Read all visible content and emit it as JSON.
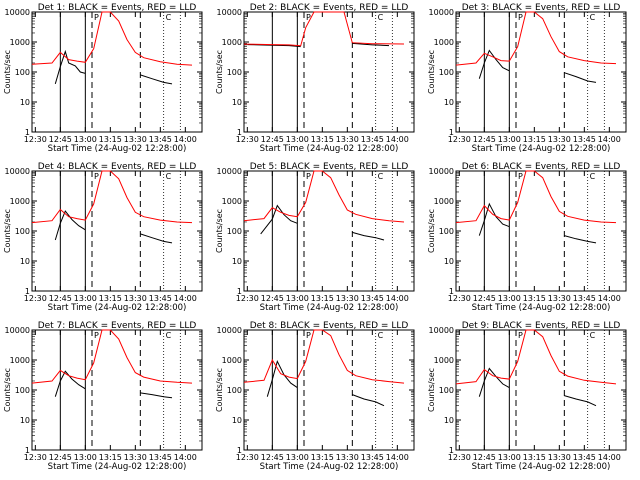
{
  "figure": {
    "xlabel": "Start Time (24-Aug-02 12:28:00)",
    "ylabel": "Counts/sec",
    "x_ticks": [
      "12:30",
      "12:45",
      "13:00",
      "13:15",
      "13:30",
      "13:45",
      "14:00"
    ],
    "y_ticks": [
      "1",
      "10",
      "100",
      "1000",
      "10000"
    ],
    "marker_glyphs": [
      "P",
      "C"
    ],
    "colors": {
      "events": "#000000",
      "lld": "#ff0000"
    }
  },
  "chart_data": [
    {
      "type": "line",
      "title": "Det 1: BLACK = Events, RED = LLD",
      "x_range": [
        "12:28",
        "14:10"
      ],
      "ylim": [
        1,
        10000
      ],
      "yscale": "log",
      "solid_markers": [
        "12:45",
        "13:00"
      ],
      "dashed_markers": [
        "13:04",
        "13:33"
      ],
      "dotted_markers": [
        "13:47",
        "13:57"
      ],
      "series": [
        {
          "name": "Events",
          "x": [
            "12:42",
            "12:45",
            "12:48",
            "12:50",
            "12:54",
            "12:57",
            "13:00",
            "13:33",
            "13:40",
            "13:47",
            "13:52"
          ],
          "y": [
            40,
            150,
            480,
            200,
            160,
            100,
            90,
            80,
            60,
            45,
            40
          ]
        },
        {
          "name": "LLD",
          "x": [
            "12:28",
            "12:40",
            "12:45",
            "12:50",
            "12:55",
            "13:00",
            "13:05",
            "13:10",
            "13:15",
            "13:20",
            "13:25",
            "13:30",
            "13:35",
            "13:45",
            "13:55",
            "14:04"
          ],
          "y": [
            180,
            200,
            450,
            260,
            230,
            210,
            600,
            10000,
            10000,
            5000,
            1200,
            450,
            300,
            220,
            180,
            170
          ]
        }
      ]
    },
    {
      "type": "line",
      "title": "Det 2: BLACK = Events, RED = LLD",
      "x_range": [
        "12:28",
        "14:10"
      ],
      "ylim": [
        1,
        10000
      ],
      "yscale": "log",
      "solid_markers": [
        "12:45",
        "13:00"
      ],
      "dashed_markers": [
        "13:04",
        "13:33"
      ],
      "dotted_markers": [
        "13:47",
        "13:57"
      ],
      "series": [
        {
          "name": "Events",
          "x": [
            "12:30",
            "12:45",
            "12:55",
            "13:02",
            "13:33",
            "13:45",
            "13:55"
          ],
          "y": [
            820,
            780,
            760,
            700,
            900,
            800,
            760
          ]
        },
        {
          "name": "LLD",
          "x": [
            "12:28",
            "12:45",
            "12:55",
            "13:02",
            "13:05",
            "13:10",
            "13:20",
            "13:28",
            "13:33",
            "13:45",
            "14:04"
          ],
          "y": [
            850,
            820,
            800,
            750,
            3000,
            10000,
            10000,
            10000,
            950,
            880,
            860
          ]
        }
      ]
    },
    {
      "type": "line",
      "title": "Det 3: BLACK = Events, RED = LLD",
      "x_range": [
        "12:28",
        "14:10"
      ],
      "ylim": [
        1,
        10000
      ],
      "yscale": "log",
      "solid_markers": [
        "12:45",
        "13:00"
      ],
      "dashed_markers": [
        "13:04",
        "13:33"
      ],
      "dotted_markers": [
        "13:47",
        "13:57"
      ],
      "series": [
        {
          "name": "Events",
          "x": [
            "12:42",
            "12:45",
            "12:48",
            "12:52",
            "12:56",
            "13:00",
            "13:33",
            "13:40",
            "13:47",
            "13:52"
          ],
          "y": [
            60,
            200,
            520,
            260,
            140,
            110,
            95,
            70,
            50,
            45
          ]
        },
        {
          "name": "LLD",
          "x": [
            "12:28",
            "12:40",
            "12:45",
            "12:50",
            "12:55",
            "13:00",
            "13:05",
            "13:10",
            "13:15",
            "13:20",
            "13:25",
            "13:30",
            "13:35",
            "13:45",
            "13:55",
            "14:04"
          ],
          "y": [
            170,
            200,
            420,
            320,
            240,
            230,
            700,
            10000,
            10000,
            6000,
            1500,
            480,
            320,
            240,
            200,
            190
          ]
        }
      ]
    },
    {
      "type": "line",
      "title": "Det 4: BLACK = Events, RED = LLD",
      "x_range": [
        "12:28",
        "14:10"
      ],
      "ylim": [
        1,
        10000
      ],
      "yscale": "log",
      "solid_markers": [
        "12:45",
        "13:00"
      ],
      "dashed_markers": [
        "13:04",
        "13:33"
      ],
      "dotted_markers": [
        "13:47",
        "13:57"
      ],
      "series": [
        {
          "name": "Events",
          "x": [
            "12:42",
            "12:45",
            "12:48",
            "12:52",
            "12:56",
            "13:00",
            "13:33",
            "13:40",
            "13:47",
            "13:52"
          ],
          "y": [
            50,
            180,
            460,
            240,
            150,
            110,
            80,
            60,
            45,
            40
          ]
        },
        {
          "name": "LLD",
          "x": [
            "12:28",
            "12:40",
            "12:45",
            "12:50",
            "12:55",
            "13:00",
            "13:05",
            "13:10",
            "13:15",
            "13:20",
            "13:25",
            "13:30",
            "13:35",
            "13:45",
            "13:55",
            "14:04"
          ],
          "y": [
            190,
            220,
            520,
            300,
            260,
            230,
            800,
            10000,
            10000,
            5500,
            1300,
            420,
            300,
            230,
            200,
            190
          ]
        }
      ]
    },
    {
      "type": "line",
      "title": "Det 5: BLACK = Events, RED = LLD",
      "x_range": [
        "12:28",
        "14:10"
      ],
      "ylim": [
        1,
        10000
      ],
      "yscale": "log",
      "solid_markers": [
        "12:45",
        "13:00"
      ],
      "dashed_markers": [
        "13:04",
        "13:33"
      ],
      "dotted_markers": [
        "13:47",
        "13:57"
      ],
      "series": [
        {
          "name": "Events",
          "x": [
            "12:38",
            "12:45",
            "12:48",
            "12:52",
            "12:56",
            "13:00",
            "13:33",
            "13:40",
            "13:47",
            "13:52"
          ],
          "y": [
            80,
            250,
            700,
            350,
            220,
            180,
            90,
            70,
            60,
            50
          ]
        },
        {
          "name": "LLD",
          "x": [
            "12:28",
            "12:40",
            "12:45",
            "12:50",
            "12:55",
            "13:00",
            "13:05",
            "13:10",
            "13:15",
            "13:20",
            "13:25",
            "13:30",
            "13:35",
            "13:45",
            "13:55",
            "14:04"
          ],
          "y": [
            220,
            260,
            600,
            420,
            330,
            300,
            900,
            10000,
            10000,
            6000,
            1600,
            500,
            360,
            260,
            220,
            200
          ]
        }
      ]
    },
    {
      "type": "line",
      "title": "Det 6: BLACK = Events, RED = LLD",
      "x_range": [
        "12:28",
        "14:10"
      ],
      "ylim": [
        1,
        10000
      ],
      "yscale": "log",
      "solid_markers": [
        "12:45",
        "13:00"
      ],
      "dashed_markers": [
        "13:04",
        "13:33"
      ],
      "dotted_markers": [
        "13:47",
        "13:57"
      ],
      "series": [
        {
          "name": "Events",
          "x": [
            "12:42",
            "12:45",
            "12:48",
            "12:52",
            "12:56",
            "13:00",
            "13:33",
            "13:40",
            "13:47",
            "13:52"
          ],
          "y": [
            70,
            220,
            800,
            300,
            170,
            140,
            70,
            55,
            45,
            40
          ]
        },
        {
          "name": "LLD",
          "x": [
            "12:28",
            "12:40",
            "12:45",
            "12:50",
            "12:55",
            "13:00",
            "13:05",
            "13:10",
            "13:15",
            "13:20",
            "13:25",
            "13:30",
            "13:35",
            "13:45",
            "13:55",
            "14:04"
          ],
          "y": [
            190,
            220,
            700,
            360,
            260,
            230,
            900,
            10000,
            10000,
            6000,
            1400,
            450,
            310,
            230,
            200,
            190
          ]
        }
      ]
    },
    {
      "type": "line",
      "title": "Det 7: BLACK = Events, RED = LLD",
      "x_range": [
        "12:28",
        "14:10"
      ],
      "ylim": [
        1,
        10000
      ],
      "yscale": "log",
      "solid_markers": [
        "12:45",
        "13:00"
      ],
      "dashed_markers": [
        "13:04",
        "13:33"
      ],
      "dotted_markers": [
        "13:47",
        "13:57"
      ],
      "series": [
        {
          "name": "Events",
          "x": [
            "12:42",
            "12:45",
            "12:48",
            "12:52",
            "12:56",
            "13:00",
            "13:33",
            "13:40",
            "13:47",
            "13:52"
          ],
          "y": [
            60,
            200,
            420,
            230,
            150,
            110,
            80,
            70,
            60,
            55
          ]
        },
        {
          "name": "LLD",
          "x": [
            "12:28",
            "12:40",
            "12:45",
            "12:50",
            "12:55",
            "13:00",
            "13:05",
            "13:10",
            "13:15",
            "13:20",
            "13:25",
            "13:30",
            "13:35",
            "13:45",
            "13:55",
            "14:04"
          ],
          "y": [
            170,
            200,
            450,
            300,
            250,
            220,
            800,
            10000,
            10000,
            5000,
            1200,
            380,
            270,
            200,
            180,
            170
          ]
        }
      ]
    },
    {
      "type": "line",
      "title": "Det 8: BLACK = Events, RED = LLD",
      "x_range": [
        "12:28",
        "14:10"
      ],
      "ylim": [
        1,
        10000
      ],
      "yscale": "log",
      "solid_markers": [
        "12:45",
        "13:00"
      ],
      "dashed_markers": [
        "13:04",
        "13:33"
      ],
      "dotted_markers": [
        "13:47",
        "13:57"
      ],
      "series": [
        {
          "name": "Events",
          "x": [
            "12:42",
            "12:45",
            "12:48",
            "12:52",
            "12:56",
            "13:00",
            "13:33",
            "13:40",
            "13:47",
            "13:52"
          ],
          "y": [
            60,
            220,
            900,
            320,
            170,
            120,
            70,
            50,
            40,
            30
          ]
        },
        {
          "name": "LLD",
          "x": [
            "12:28",
            "12:40",
            "12:45",
            "12:50",
            "12:55",
            "13:00",
            "13:05",
            "13:10",
            "13:15",
            "13:20",
            "13:25",
            "13:30",
            "13:35",
            "13:45",
            "13:55",
            "14:04"
          ],
          "y": [
            180,
            210,
            1000,
            350,
            270,
            240,
            900,
            10000,
            10000,
            6500,
            1500,
            450,
            300,
            220,
            190,
            170
          ]
        }
      ]
    },
    {
      "type": "line",
      "title": "Det 9: BLACK = Events, RED = LLD",
      "x_range": [
        "12:28",
        "14:10"
      ],
      "ylim": [
        1,
        10000
      ],
      "yscale": "log",
      "solid_markers": [
        "12:45",
        "13:00"
      ],
      "dashed_markers": [
        "13:04",
        "13:33"
      ],
      "dotted_markers": [
        "13:47",
        "13:57"
      ],
      "series": [
        {
          "name": "Events",
          "x": [
            "12:42",
            "12:45",
            "12:48",
            "12:52",
            "12:56",
            "13:00",
            "13:33",
            "13:40",
            "13:47",
            "13:52"
          ],
          "y": [
            60,
            200,
            520,
            280,
            160,
            120,
            65,
            50,
            40,
            30
          ]
        },
        {
          "name": "LLD",
          "x": [
            "12:28",
            "12:40",
            "12:45",
            "12:50",
            "12:55",
            "13:00",
            "13:05",
            "13:10",
            "13:15",
            "13:20",
            "13:25",
            "13:30",
            "13:35",
            "13:45",
            "13:55",
            "14:04"
          ],
          "y": [
            160,
            190,
            480,
            300,
            250,
            230,
            900,
            10000,
            10000,
            6000,
            1400,
            420,
            290,
            210,
            180,
            160
          ]
        }
      ]
    }
  ]
}
